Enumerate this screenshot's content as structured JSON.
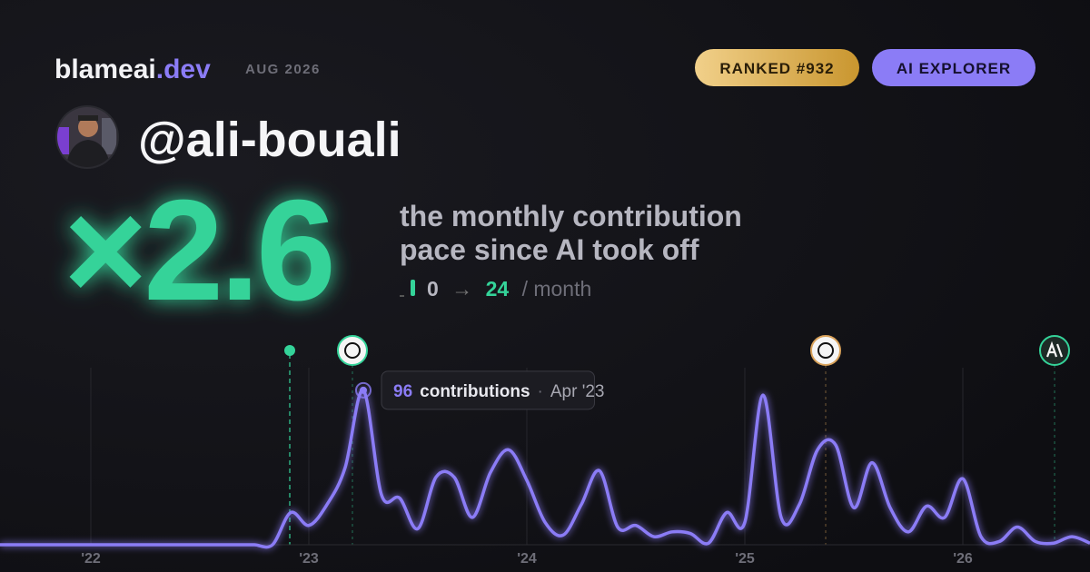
{
  "brand": {
    "name": "blameai",
    "tld": ".dev",
    "date": "AUG 2026"
  },
  "badges": [
    "RANKED #932",
    "AI EXPLORER"
  ],
  "user": "@ali-bouali",
  "headline": {
    "multiplier": "×2.6",
    "caption_line1": "the monthly contribution",
    "caption_line2": "pace since AI took off",
    "from": "0",
    "arrow": "→",
    "to": "24",
    "unit": "/ month"
  },
  "chart_data": {
    "type": "line",
    "categories": [
      null,
      null,
      null,
      null,
      null,
      "'22",
      null,
      null,
      null,
      null,
      null,
      null,
      null,
      null,
      null,
      null,
      null,
      "'23",
      null,
      null,
      null,
      null,
      null,
      null,
      null,
      null,
      null,
      null,
      null,
      "'24",
      null,
      null,
      null,
      null,
      null,
      null,
      null,
      null,
      null,
      null,
      null,
      "'25",
      null,
      null,
      null,
      null,
      null,
      null,
      null,
      null,
      null,
      null,
      null,
      "'26",
      null,
      null,
      null,
      null,
      null,
      null,
      null
    ],
    "series": [
      {
        "name": "contributions",
        "color": "#8b7cf6",
        "values": [
          0,
          0,
          0,
          0,
          0,
          0,
          0,
          0,
          0,
          0,
          0,
          0,
          0,
          0,
          0,
          0,
          20,
          12,
          25,
          48,
          96,
          31,
          29,
          10,
          42,
          42,
          17,
          45,
          59,
          40,
          14,
          6,
          25,
          46,
          11,
          12,
          5,
          8,
          7,
          1,
          20,
          14,
          93,
          17,
          25,
          59,
          62,
          23,
          51,
          23,
          8,
          24,
          17,
          41,
          5,
          2,
          11,
          2,
          1,
          5,
          1
        ]
      }
    ],
    "ylim": [
      0,
      110
    ],
    "grid": true,
    "tooltip": {
      "index": 20,
      "label": "contributions",
      "sep": "·",
      "date": "Apr '23"
    }
  }
}
